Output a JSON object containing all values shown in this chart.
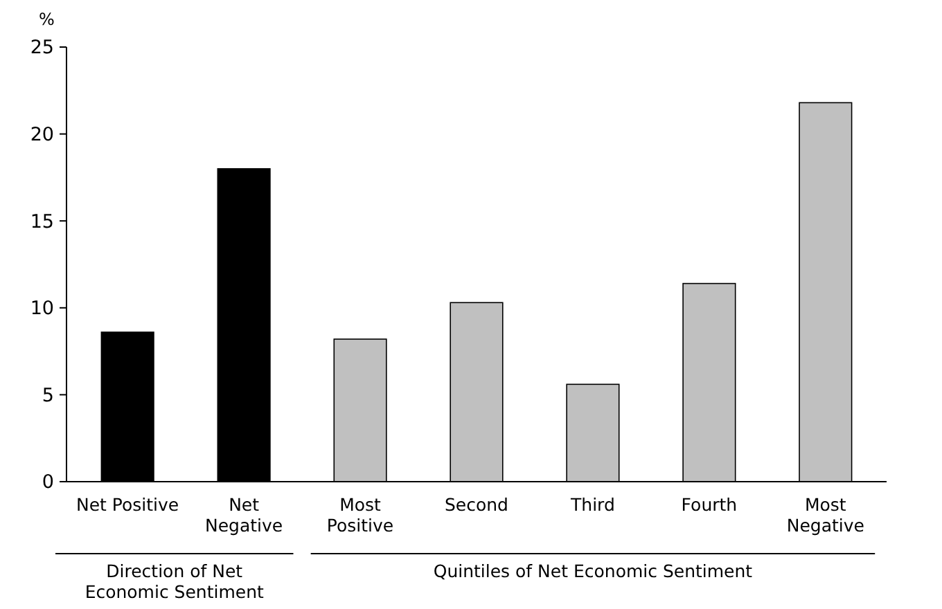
{
  "chart_data": {
    "type": "bar",
    "ylabel": "%",
    "categories": [
      "Net Positive",
      "Net\nNegative",
      "Most\nPositive",
      "Second",
      "Third",
      "Fourth",
      "Most\nNegative"
    ],
    "values": [
      8.6,
      18.0,
      8.2,
      10.3,
      5.6,
      11.4,
      21.8
    ],
    "colors": [
      "#000000",
      "#000000",
      "#c0c0c0",
      "#c0c0c0",
      "#c0c0c0",
      "#c0c0c0",
      "#c0c0c0"
    ],
    "ylim": [
      0,
      25
    ],
    "yticks": [
      0,
      5,
      10,
      15,
      20,
      25
    ],
    "grid": false,
    "annotations": [
      "Direction of Net\nEconomic Sentiment",
      "Quintiles of Net Economic Sentiment"
    ]
  }
}
